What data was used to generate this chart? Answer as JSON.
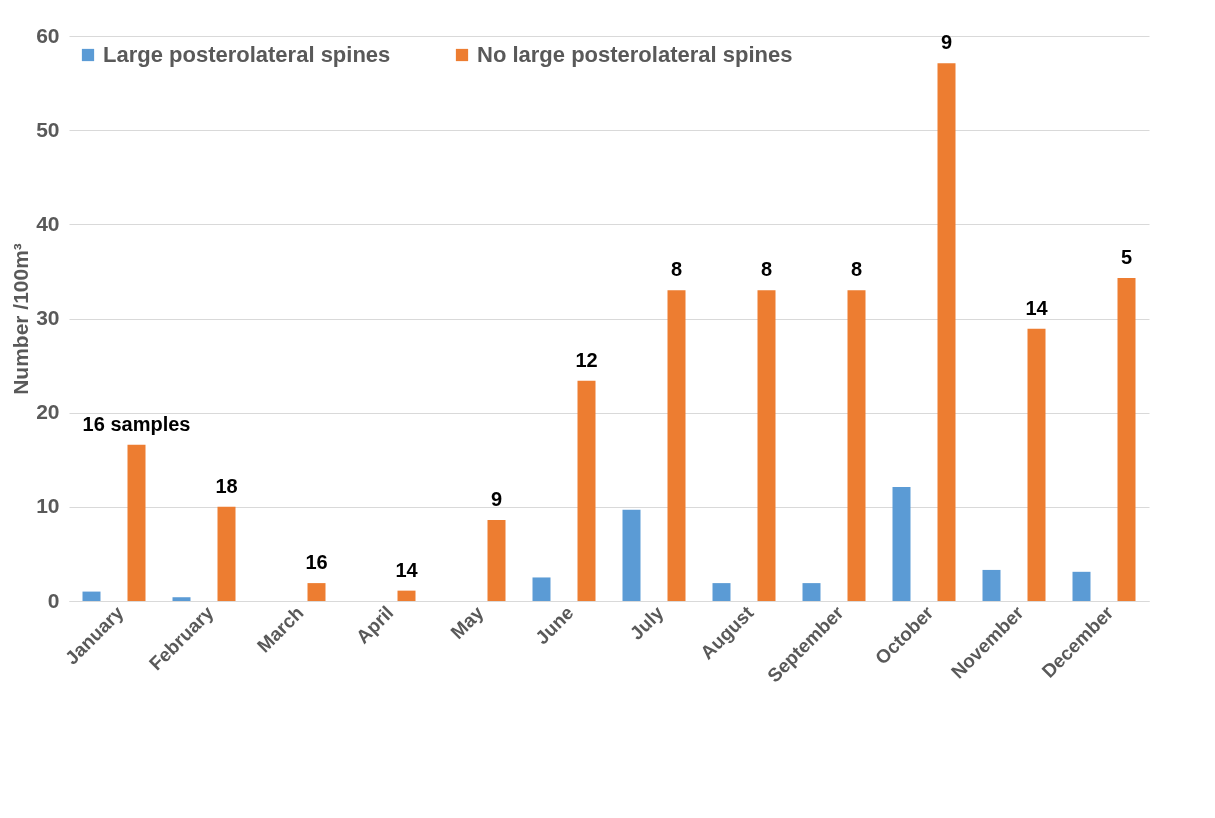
{
  "chart_data": {
    "type": "bar",
    "ylabel": "Number /100m³",
    "categories": [
      "January",
      "February",
      "March",
      "April",
      "May",
      "June",
      "July",
      "August",
      "September",
      "October",
      "November",
      "December"
    ],
    "series": [
      {
        "name": "Large posterolateral spines",
        "color": "#5b9bd5",
        "values": [
          1.0,
          0.4,
          0,
          0,
          0,
          2.5,
          9.7,
          1.9,
          1.9,
          12.1,
          3.3,
          3.1
        ]
      },
      {
        "name": "No large posterolateral spines",
        "color": "#ed7d31",
        "values": [
          16.6,
          10.0,
          1.9,
          1.1,
          8.6,
          23.4,
          33.0,
          33.0,
          33.0,
          57.1,
          28.9,
          34.3
        ]
      }
    ],
    "annotations": [
      "16 samples",
      "18",
      "16",
      "14",
      "9",
      "12",
      "8",
      "8",
      "8",
      "9",
      "14",
      "5"
    ],
    "ylim": [
      0,
      60
    ],
    "yticks": [
      0,
      10,
      20,
      30,
      40,
      50,
      60
    ],
    "grid": "y",
    "legend": "top left"
  }
}
